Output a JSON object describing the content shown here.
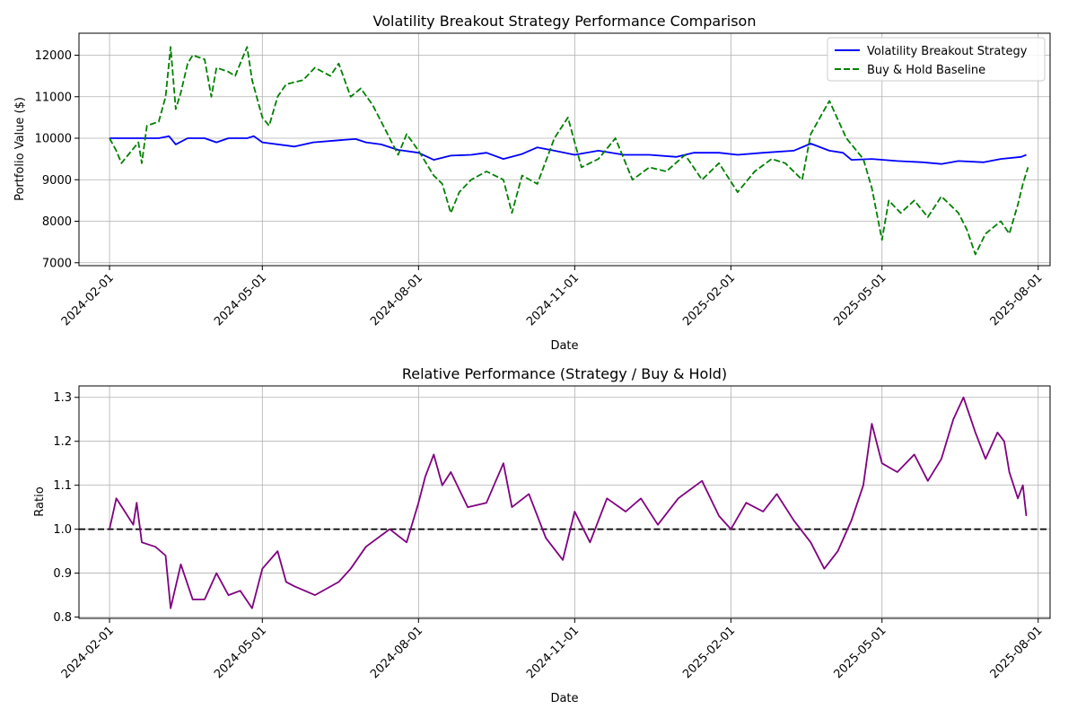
{
  "chart_data": [
    {
      "type": "line",
      "title": "Volatility Breakout Strategy Performance Comparison",
      "xlabel": "Date",
      "ylabel": "Portfolio Value ($)",
      "xlim": [
        "2024-01-14",
        "2025-08-08"
      ],
      "ylim": [
        6930,
        12530
      ],
      "grid": true,
      "legend_position": "top-right",
      "x_ticks": [
        "2024-02-01",
        "2024-05-01",
        "2024-08-01",
        "2024-11-01",
        "2025-02-01",
        "2025-05-01",
        "2025-08-01"
      ],
      "y_ticks": [
        7000,
        8000,
        9000,
        10000,
        11000,
        12000
      ],
      "series": [
        {
          "name": "Volatility Breakout Strategy",
          "color": "#0000ff",
          "style": "solid",
          "points": [
            [
              "2024-02-01",
              10000
            ],
            [
              "2024-02-15",
              10000
            ],
            [
              "2024-03-01",
              10000
            ],
            [
              "2024-03-07",
              10050
            ],
            [
              "2024-03-11",
              9850
            ],
            [
              "2024-03-18",
              10000
            ],
            [
              "2024-03-28",
              10000
            ],
            [
              "2024-04-04",
              9900
            ],
            [
              "2024-04-11",
              10000
            ],
            [
              "2024-04-22",
              10000
            ],
            [
              "2024-04-26",
              10050
            ],
            [
              "2024-05-01",
              9900
            ],
            [
              "2024-05-20",
              9800
            ],
            [
              "2024-05-31",
              9900
            ],
            [
              "2024-06-15",
              9950
            ],
            [
              "2024-06-25",
              9980
            ],
            [
              "2024-07-01",
              9900
            ],
            [
              "2024-07-10",
              9850
            ],
            [
              "2024-07-20",
              9720
            ],
            [
              "2024-08-01",
              9650
            ],
            [
              "2024-08-10",
              9480
            ],
            [
              "2024-08-20",
              9580
            ],
            [
              "2024-09-01",
              9600
            ],
            [
              "2024-09-10",
              9650
            ],
            [
              "2024-09-20",
              9500
            ],
            [
              "2024-10-01",
              9620
            ],
            [
              "2024-10-10",
              9780
            ],
            [
              "2024-10-20",
              9700
            ],
            [
              "2024-11-01",
              9600
            ],
            [
              "2024-11-15",
              9700
            ],
            [
              "2024-11-30",
              9600
            ],
            [
              "2024-12-15",
              9600
            ],
            [
              "2024-12-31",
              9550
            ],
            [
              "2025-01-10",
              9650
            ],
            [
              "2025-01-25",
              9650
            ],
            [
              "2025-02-05",
              9600
            ],
            [
              "2025-02-20",
              9650
            ],
            [
              "2025-03-10",
              9700
            ],
            [
              "2025-03-20",
              9870
            ],
            [
              "2025-03-31",
              9700
            ],
            [
              "2025-04-08",
              9650
            ],
            [
              "2025-04-13",
              9480
            ],
            [
              "2025-04-25",
              9500
            ],
            [
              "2025-05-10",
              9450
            ],
            [
              "2025-05-25",
              9420
            ],
            [
              "2025-06-05",
              9380
            ],
            [
              "2025-06-15",
              9450
            ],
            [
              "2025-06-30",
              9420
            ],
            [
              "2025-07-10",
              9500
            ],
            [
              "2025-07-22",
              9550
            ],
            [
              "2025-07-25",
              9600
            ]
          ]
        },
        {
          "name": "Buy & Hold Baseline",
          "color": "#008000",
          "style": "dashed",
          "points": [
            [
              "2024-02-01",
              10000
            ],
            [
              "2024-02-05",
              9700
            ],
            [
              "2024-02-08",
              9400
            ],
            [
              "2024-02-12",
              9600
            ],
            [
              "2024-02-18",
              9900
            ],
            [
              "2024-02-20",
              9400
            ],
            [
              "2024-02-23",
              10300
            ],
            [
              "2024-03-01",
              10400
            ],
            [
              "2024-03-05",
              11000
            ],
            [
              "2024-03-08",
              12200
            ],
            [
              "2024-03-11",
              10700
            ],
            [
              "2024-03-14",
              11100
            ],
            [
              "2024-03-18",
              11800
            ],
            [
              "2024-03-21",
              12000
            ],
            [
              "2024-03-28",
              11900
            ],
            [
              "2024-04-01",
              11000
            ],
            [
              "2024-04-04",
              11700
            ],
            [
              "2024-04-11",
              11600
            ],
            [
              "2024-04-15",
              11500
            ],
            [
              "2024-04-22",
              12200
            ],
            [
              "2024-04-25",
              11400
            ],
            [
              "2024-05-01",
              10500
            ],
            [
              "2024-05-05",
              10300
            ],
            [
              "2024-05-10",
              11000
            ],
            [
              "2024-05-15",
              11300
            ],
            [
              "2024-05-25",
              11400
            ],
            [
              "2024-06-01",
              11700
            ],
            [
              "2024-06-10",
              11500
            ],
            [
              "2024-06-15",
              11800
            ],
            [
              "2024-06-22",
              11000
            ],
            [
              "2024-06-28",
              11200
            ],
            [
              "2024-07-05",
              10800
            ],
            [
              "2024-07-15",
              10000
            ],
            [
              "2024-07-20",
              9600
            ],
            [
              "2024-07-25",
              10100
            ],
            [
              "2024-08-01",
              9700
            ],
            [
              "2024-08-10",
              9100
            ],
            [
              "2024-08-15",
              8900
            ],
            [
              "2024-08-20",
              8200
            ],
            [
              "2024-08-25",
              8700
            ],
            [
              "2024-09-01",
              9000
            ],
            [
              "2024-09-10",
              9200
            ],
            [
              "2024-09-20",
              9000
            ],
            [
              "2024-09-25",
              8200
            ],
            [
              "2024-10-01",
              9100
            ],
            [
              "2024-10-10",
              8900
            ],
            [
              "2024-10-20",
              10000
            ],
            [
              "2024-10-28",
              10500
            ],
            [
              "2024-11-05",
              9300
            ],
            [
              "2024-11-15",
              9500
            ],
            [
              "2024-11-25",
              10000
            ],
            [
              "2024-12-05",
              9000
            ],
            [
              "2024-12-15",
              9300
            ],
            [
              "2024-12-25",
              9200
            ],
            [
              "2025-01-05",
              9600
            ],
            [
              "2025-01-15",
              9000
            ],
            [
              "2025-01-25",
              9400
            ],
            [
              "2025-02-05",
              8700
            ],
            [
              "2025-02-15",
              9200
            ],
            [
              "2025-02-25",
              9500
            ],
            [
              "2025-03-05",
              9400
            ],
            [
              "2025-03-15",
              9000
            ],
            [
              "2025-03-20",
              10100
            ],
            [
              "2025-03-31",
              10900
            ],
            [
              "2025-04-10",
              10000
            ],
            [
              "2025-04-20",
              9500
            ],
            [
              "2025-04-25",
              8800
            ],
            [
              "2025-05-01",
              7550
            ],
            [
              "2025-05-05",
              8500
            ],
            [
              "2025-05-12",
              8200
            ],
            [
              "2025-05-20",
              8500
            ],
            [
              "2025-05-28",
              8100
            ],
            [
              "2025-06-05",
              8600
            ],
            [
              "2025-06-15",
              8200
            ],
            [
              "2025-06-20",
              7800
            ],
            [
              "2025-06-25",
              7200
            ],
            [
              "2025-07-01",
              7700
            ],
            [
              "2025-07-10",
              8000
            ],
            [
              "2025-07-15",
              7700
            ],
            [
              "2025-07-20",
              8400
            ],
            [
              "2025-07-23",
              8900
            ],
            [
              "2025-07-26",
              9300
            ]
          ]
        }
      ]
    },
    {
      "type": "line",
      "title": "Relative Performance (Strategy / Buy & Hold)",
      "xlabel": "Date",
      "ylabel": "Ratio",
      "xlim": [
        "2024-01-14",
        "2025-08-08"
      ],
      "ylim": [
        0.797,
        1.326
      ],
      "grid": true,
      "reference_line": 1.0,
      "x_ticks": [
        "2024-02-01",
        "2024-05-01",
        "2024-08-01",
        "2024-11-01",
        "2025-02-01",
        "2025-05-01",
        "2025-08-01"
      ],
      "y_ticks": [
        0.8,
        0.9,
        1.0,
        1.1,
        1.2,
        1.3
      ],
      "series": [
        {
          "color": "#800080",
          "style": "solid",
          "points": [
            [
              "2024-02-01",
              1.0
            ],
            [
              "2024-02-05",
              1.07
            ],
            [
              "2024-02-10",
              1.04
            ],
            [
              "2024-02-15",
              1.01
            ],
            [
              "2024-02-17",
              1.06
            ],
            [
              "2024-02-20",
              0.97
            ],
            [
              "2024-02-28",
              0.96
            ],
            [
              "2024-03-05",
              0.94
            ],
            [
              "2024-03-08",
              0.82
            ],
            [
              "2024-03-14",
              0.92
            ],
            [
              "2024-03-21",
              0.84
            ],
            [
              "2024-03-28",
              0.84
            ],
            [
              "2024-04-04",
              0.9
            ],
            [
              "2024-04-11",
              0.85
            ],
            [
              "2024-04-18",
              0.86
            ],
            [
              "2024-04-25",
              0.82
            ],
            [
              "2024-05-01",
              0.91
            ],
            [
              "2024-05-10",
              0.95
            ],
            [
              "2024-05-15",
              0.88
            ],
            [
              "2024-05-20",
              0.87
            ],
            [
              "2024-06-01",
              0.85
            ],
            [
              "2024-06-15",
              0.88
            ],
            [
              "2024-06-22",
              0.91
            ],
            [
              "2024-07-01",
              0.96
            ],
            [
              "2024-07-15",
              1.0
            ],
            [
              "2024-07-25",
              0.97
            ],
            [
              "2024-08-01",
              1.06
            ],
            [
              "2024-08-05",
              1.12
            ],
            [
              "2024-08-10",
              1.17
            ],
            [
              "2024-08-15",
              1.1
            ],
            [
              "2024-08-20",
              1.13
            ],
            [
              "2024-08-30",
              1.05
            ],
            [
              "2024-09-10",
              1.06
            ],
            [
              "2024-09-20",
              1.15
            ],
            [
              "2024-09-25",
              1.05
            ],
            [
              "2024-10-05",
              1.08
            ],
            [
              "2024-10-15",
              0.98
            ],
            [
              "2024-10-25",
              0.93
            ],
            [
              "2024-11-01",
              1.04
            ],
            [
              "2024-11-10",
              0.97
            ],
            [
              "2024-11-20",
              1.07
            ],
            [
              "2024-12-01",
              1.04
            ],
            [
              "2024-12-10",
              1.07
            ],
            [
              "2024-12-20",
              1.01
            ],
            [
              "2025-01-01",
              1.07
            ],
            [
              "2025-01-15",
              1.11
            ],
            [
              "2025-01-25",
              1.03
            ],
            [
              "2025-02-01",
              1.0
            ],
            [
              "2025-02-10",
              1.06
            ],
            [
              "2025-02-20",
              1.04
            ],
            [
              "2025-02-28",
              1.08
            ],
            [
              "2025-03-10",
              1.02
            ],
            [
              "2025-03-20",
              0.97
            ],
            [
              "2025-03-28",
              0.91
            ],
            [
              "2025-04-05",
              0.95
            ],
            [
              "2025-04-13",
              1.02
            ],
            [
              "2025-04-20",
              1.1
            ],
            [
              "2025-04-25",
              1.24
            ],
            [
              "2025-05-01",
              1.15
            ],
            [
              "2025-05-10",
              1.13
            ],
            [
              "2025-05-20",
              1.17
            ],
            [
              "2025-05-28",
              1.11
            ],
            [
              "2025-06-05",
              1.16
            ],
            [
              "2025-06-12",
              1.25
            ],
            [
              "2025-06-18",
              1.3
            ],
            [
              "2025-06-25",
              1.22
            ],
            [
              "2025-07-01",
              1.16
            ],
            [
              "2025-07-08",
              1.22
            ],
            [
              "2025-07-12",
              1.2
            ],
            [
              "2025-07-15",
              1.13
            ],
            [
              "2025-07-20",
              1.07
            ],
            [
              "2025-07-23",
              1.1
            ],
            [
              "2025-07-25",
              1.03
            ]
          ]
        }
      ]
    }
  ]
}
